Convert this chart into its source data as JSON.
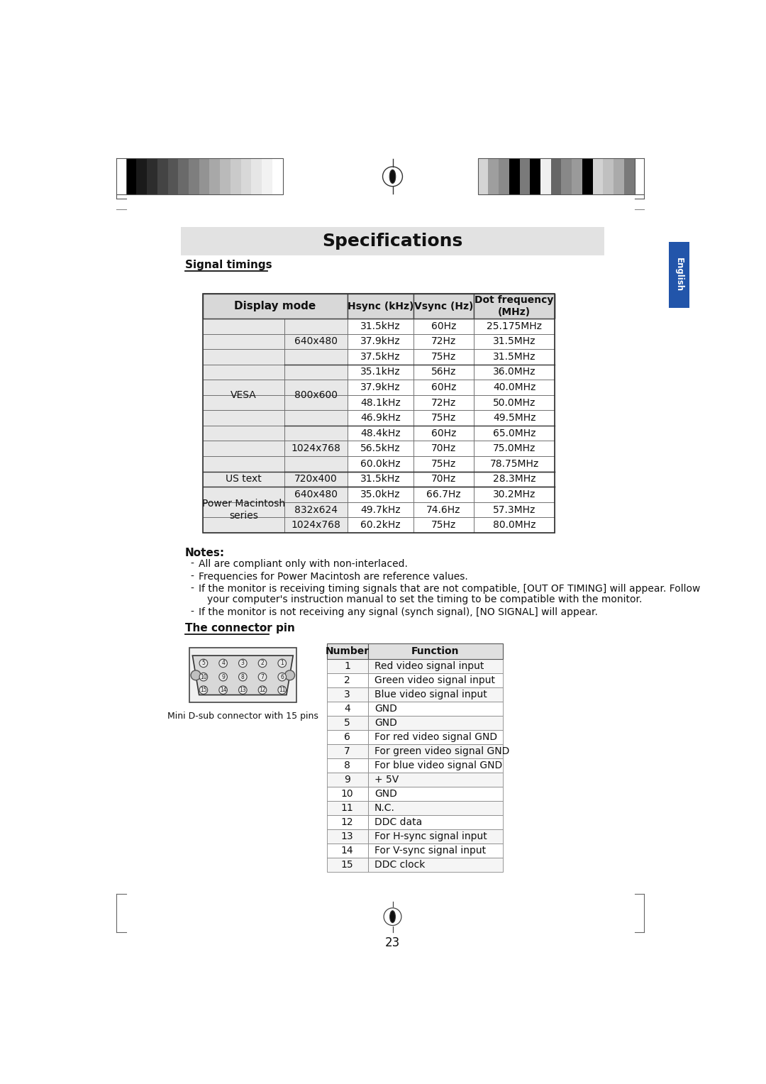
{
  "title": "Specifications",
  "section1": "Signal timings",
  "section2": "The connector pin",
  "notes_title": "Notes:",
  "notes": [
    "All are compliant only with non-interlaced.",
    "Frequencies for Power Macintosh are reference values.",
    "If the monitor is receiving timing signals that are not compatible, [OUT OF TIMING] will appear. Follow\nyour computer's instruction manual to set the timing to be compatible with the monitor.",
    "If the monitor is not receiving any signal (synch signal), [NO SIGNAL] will appear."
  ],
  "signal_table_rows": [
    [
      "VESA",
      "640x480",
      "31.5kHz",
      "60Hz",
      "25.175MHz"
    ],
    [
      "",
      "",
      "37.9kHz",
      "72Hz",
      "31.5MHz"
    ],
    [
      "",
      "",
      "37.5kHz",
      "75Hz",
      "31.5MHz"
    ],
    [
      "",
      "800x600",
      "35.1kHz",
      "56Hz",
      "36.0MHz"
    ],
    [
      "",
      "",
      "37.9kHz",
      "60Hz",
      "40.0MHz"
    ],
    [
      "",
      "",
      "48.1kHz",
      "72Hz",
      "50.0MHz"
    ],
    [
      "",
      "",
      "46.9kHz",
      "75Hz",
      "49.5MHz"
    ],
    [
      "",
      "1024x768",
      "48.4kHz",
      "60Hz",
      "65.0MHz"
    ],
    [
      "",
      "",
      "56.5kHz",
      "70Hz",
      "75.0MHz"
    ],
    [
      "",
      "",
      "60.0kHz",
      "75Hz",
      "78.75MHz"
    ],
    [
      "US text",
      "720x400",
      "31.5kHz",
      "70Hz",
      "28.3MHz"
    ],
    [
      "Power Macintosh\nseries",
      "640x480",
      "35.0kHz",
      "66.7Hz",
      "30.2MHz"
    ],
    [
      "",
      "832x624",
      "49.7kHz",
      "74.6Hz",
      "57.3MHz"
    ],
    [
      "",
      "1024x768",
      "60.2kHz",
      "75Hz",
      "80.0MHz"
    ]
  ],
  "connector_table_rows": [
    [
      "1",
      "Red video signal input"
    ],
    [
      "2",
      "Green video signal input"
    ],
    [
      "3",
      "Blue video signal input"
    ],
    [
      "4",
      "GND"
    ],
    [
      "5",
      "GND"
    ],
    [
      "6",
      "For red video signal GND"
    ],
    [
      "7",
      "For green video signal GND"
    ],
    [
      "8",
      "For blue video signal GND"
    ],
    [
      "9",
      "+ 5V"
    ],
    [
      "10",
      "GND"
    ],
    [
      "11",
      "N.C."
    ],
    [
      "12",
      "DDC data"
    ],
    [
      "13",
      "For H-sync signal input"
    ],
    [
      "14",
      "For V-sync signal input"
    ],
    [
      "15",
      "DDC clock"
    ]
  ],
  "connector_caption": "Mini D-sub connector with 15 pins",
  "page_number": "23",
  "colors_left": [
    "#000000",
    "#1a1a1a",
    "#2d2d2d",
    "#444444",
    "#555555",
    "#6a6a6a",
    "#7e7e7e",
    "#939393",
    "#a8a8a8",
    "#bababa",
    "#cacaca",
    "#d8d8d8",
    "#e6e6e6",
    "#f2f2f2",
    "#ffffff"
  ],
  "colors_right": [
    "#d4d4d4",
    "#9e9e9e",
    "#8a8a8a",
    "#000000",
    "#7a7a7a",
    "#000000",
    "#f0f0f0",
    "#666666",
    "#888888",
    "#9a9a9a",
    "#000000",
    "#d2d2d2",
    "#c0c0c0",
    "#aaaaaa",
    "#7a7a7a"
  ]
}
